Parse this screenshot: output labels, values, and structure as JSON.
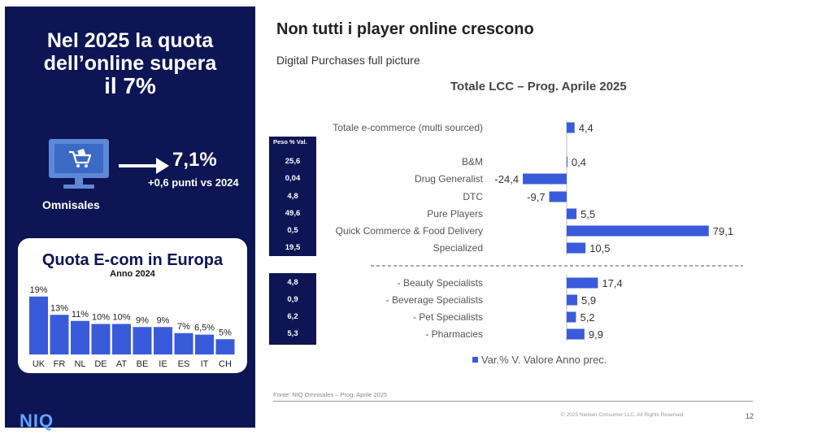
{
  "left": {
    "title_line1": "Nel 2025 la quota",
    "title_line2": "dell’online supera",
    "title_line3": "il 7%",
    "omnisales_label": "Omnisales",
    "omnisales_value": "7,1%",
    "omnisales_delta": "+0,6 punti vs 2024",
    "europe_title": "Quota E-com in Europa",
    "europe_subtitle": "Anno 2024",
    "logo": "NIQ"
  },
  "header": {
    "title": "Non tutti i player online crescono",
    "subtitle": "Digital Purchases full picture"
  },
  "weights": {
    "header": "Peso % Val.",
    "values_top": [
      "25,6",
      "0,04",
      "4,8",
      "49,6",
      "0,5",
      "19,5"
    ],
    "values_bottom": [
      "4,8",
      "0,9",
      "6,2",
      "5,3"
    ]
  },
  "footer": {
    "source": "Fonte: NIQ Omnisales – Prog. Aprile 2025",
    "copyright": "© 2025 Nielsen Consumer LLC. All Rights Reserved.",
    "page_number": "12"
  },
  "colors": {
    "navy": "#0d1554",
    "bar_blue": "#3a5bd9",
    "logo_blue": "#5fa8ff"
  },
  "chart_data": [
    {
      "type": "bar",
      "orientation": "horizontal",
      "title": "Totale LCC – Prog. Aprile 2025",
      "categories": [
        "Totale e-commerce (multi sourced)",
        "B&M",
        "Drug Generalist",
        "DTC",
        "Pure Players",
        "Quick Commerce & Food Delivery",
        "Specialized",
        "- Beauty Specialists",
        "- Beverage Specialists",
        "- Pet Specialists",
        "- Pharmacies"
      ],
      "values": [
        4.4,
        0.4,
        -24.4,
        -9.7,
        5.5,
        79.1,
        10.5,
        17.4,
        5.9,
        5.2,
        9.9
      ],
      "value_labels": [
        "4,4",
        "0,4",
        "-24,4",
        "-9,7",
        "5,5",
        "79,1",
        "10,5",
        "17,4",
        "5,9",
        "5,2",
        "9,9"
      ],
      "series": [
        {
          "name": "Var.% V. Valore Anno prec."
        }
      ],
      "legend": "bottom",
      "grid": false
    },
    {
      "type": "bar",
      "title": "Quota E-com in Europa",
      "subtitle": "Anno 2024",
      "categories": [
        "UK",
        "FR",
        "NL",
        "DE",
        "AT",
        "BE",
        "IE",
        "ES",
        "IT",
        "CH"
      ],
      "values": [
        19,
        13,
        11,
        10,
        10,
        9,
        9,
        7,
        6.5,
        5
      ],
      "value_labels": [
        "19%",
        "13%",
        "11%",
        "10%",
        "10%",
        "9%",
        "9%",
        "7%",
        "6,5%",
        "5%"
      ],
      "grid": false
    }
  ]
}
